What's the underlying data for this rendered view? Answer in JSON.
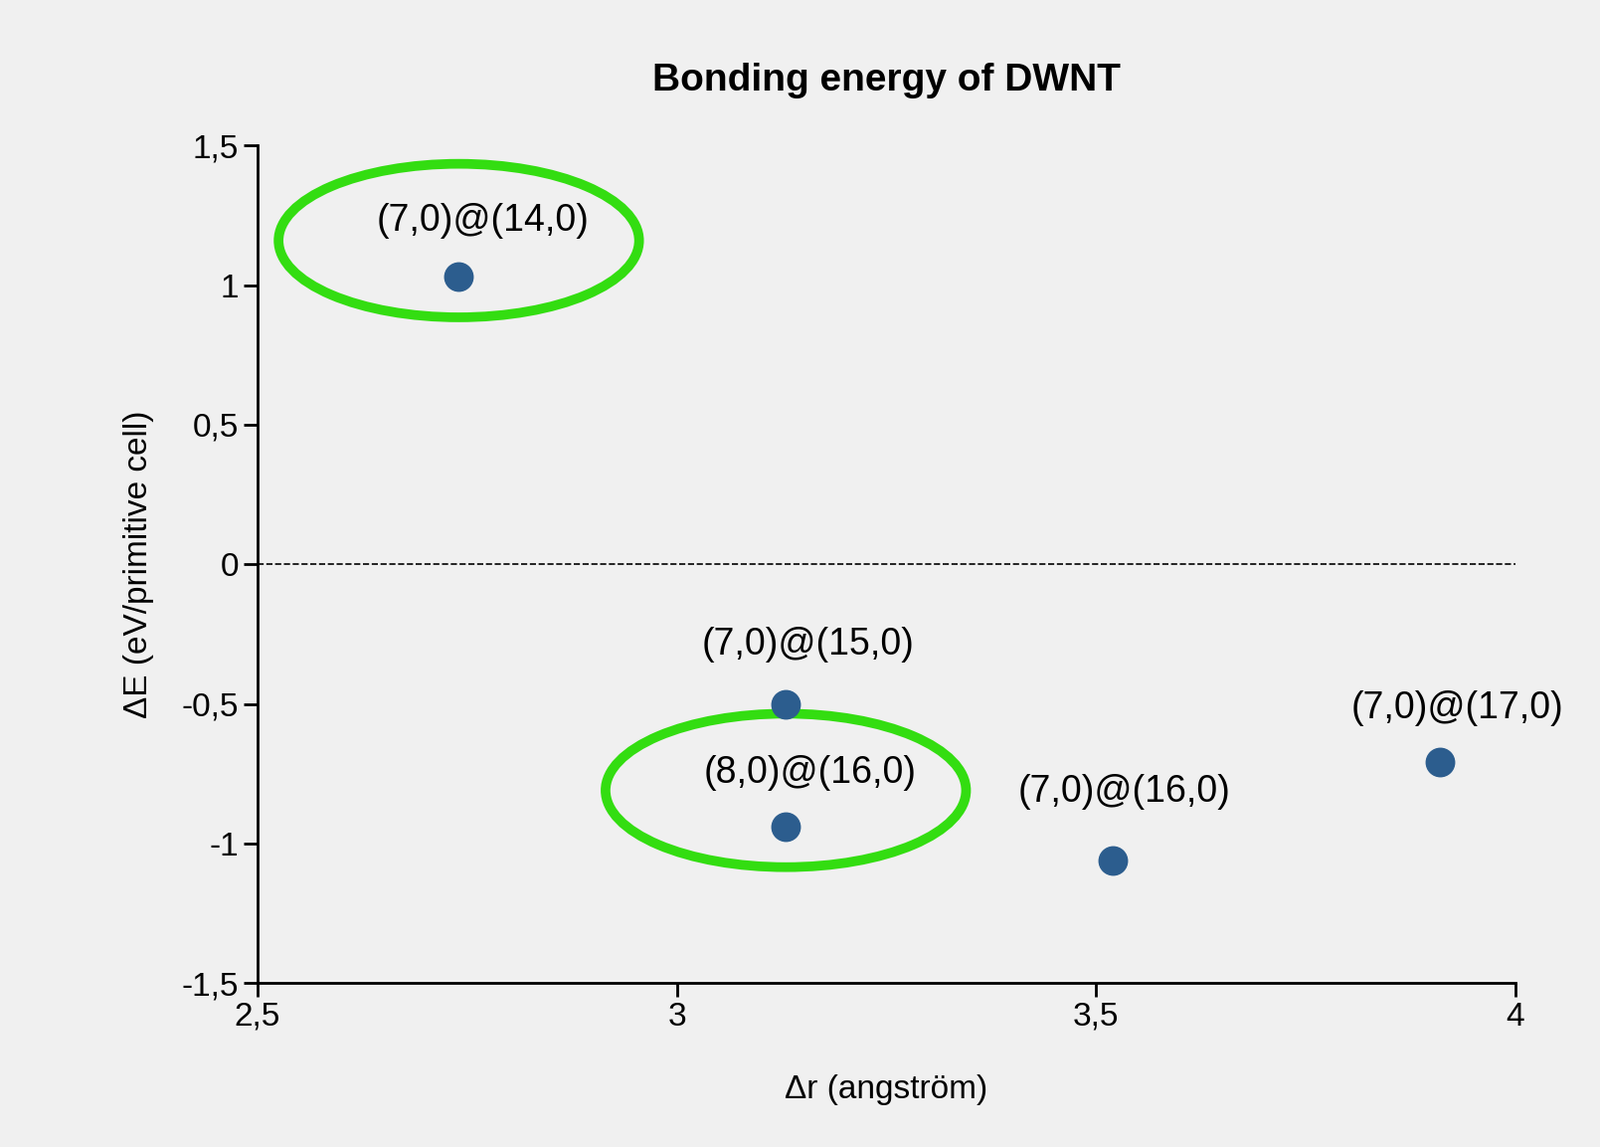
{
  "chart_data": {
    "type": "scatter",
    "title": "Bonding energy of DWNT",
    "x_label": "Δr (angström)",
    "y_label": "ΔE (eV/primitive cell)",
    "labels": [
      "(7,0)@(14,0)",
      "(7,0)@(15,0)",
      "(8,0)@(16,0)",
      "(7,0)@(16,0)",
      "(7,0)@(17,0)"
    ],
    "x": [
      2.74,
      3.13,
      3.13,
      3.52,
      3.91
    ],
    "values": [
      1.03,
      -0.5,
      -0.94,
      -1.06,
      -0.71
    ],
    "highlight": [
      true,
      false,
      true,
      false,
      false
    ],
    "reference_line": 0,
    "color": "#2c5d8e",
    "marker": "o",
    "xlim": [
      2.5,
      4
    ],
    "xticks": [
      {
        "value": 2.5,
        "label": "2,5"
      },
      3,
      {
        "value": 3.5,
        "label": "3,5"
      },
      4
    ],
    "ylim": [
      -1.5,
      1.5
    ],
    "yticks": [
      {
        "value": -1.5,
        "label": "-1,5"
      },
      -1,
      {
        "value": -0.5,
        "label": "-0,5"
      },
      0,
      {
        "value": 0.5,
        "label": "0,5"
      },
      1,
      {
        "value": 1.5,
        "label": "1,5"
      }
    ],
    "grid": false
  }
}
